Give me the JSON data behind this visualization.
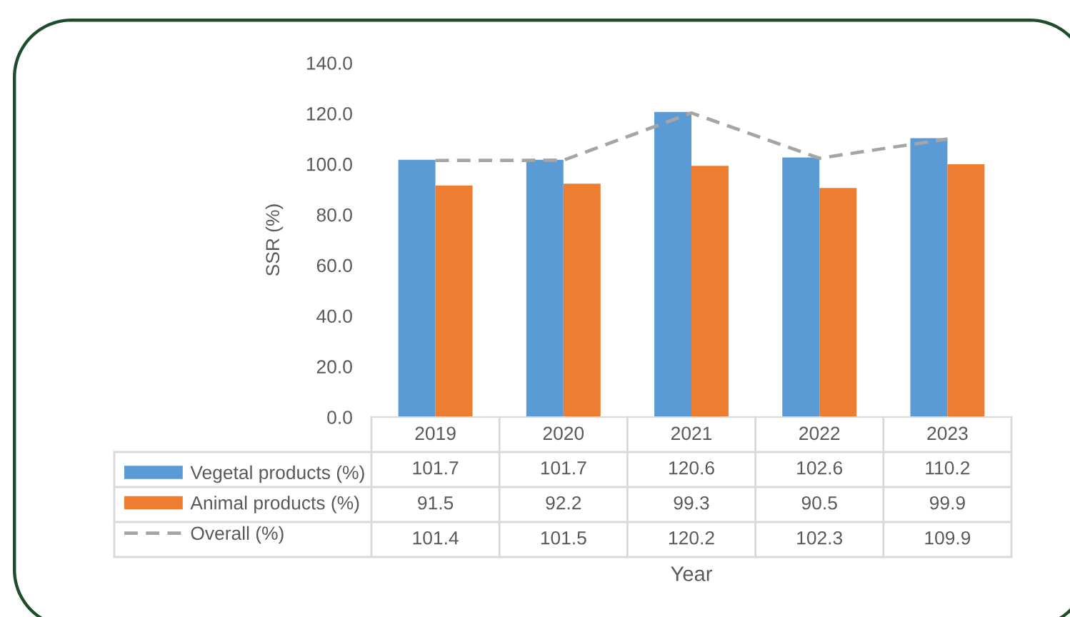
{
  "chart_data": {
    "type": "bar",
    "categories": [
      "2019",
      "2020",
      "2021",
      "2022",
      "2023"
    ],
    "ylabel": "SSR (%)",
    "annotations": [
      "Year"
    ],
    "ylim": [
      0,
      140
    ],
    "yticks": [
      {
        "value": 0,
        "label": "0.0"
      },
      {
        "value": 20,
        "label": "20.0"
      },
      {
        "value": 40,
        "label": "40.0"
      },
      {
        "value": 60,
        "label": "60.0"
      },
      {
        "value": 80,
        "label": "80.0"
      },
      {
        "value": 100,
        "label": "100.0"
      },
      {
        "value": 120,
        "label": "120.0"
      },
      {
        "value": 140,
        "label": "140.0"
      }
    ],
    "series": [
      {
        "name": "Vegetal products (%)",
        "color": "#5b9bd5",
        "values": [
          101.7,
          101.7,
          120.6,
          102.6,
          110.2
        ]
      },
      {
        "name": "Animal products (%)",
        "color": "#ed7d31",
        "values": [
          91.5,
          92.2,
          99.3,
          90.5,
          99.9
        ]
      },
      {
        "name": "Overall (%)",
        "type": "line",
        "color": "#a5a5a5",
        "line_style": "dashed",
        "values": [
          101.4,
          101.5,
          120.2,
          102.3,
          109.9
        ]
      }
    ],
    "data_labels": true,
    "legend": "bottom left"
  }
}
